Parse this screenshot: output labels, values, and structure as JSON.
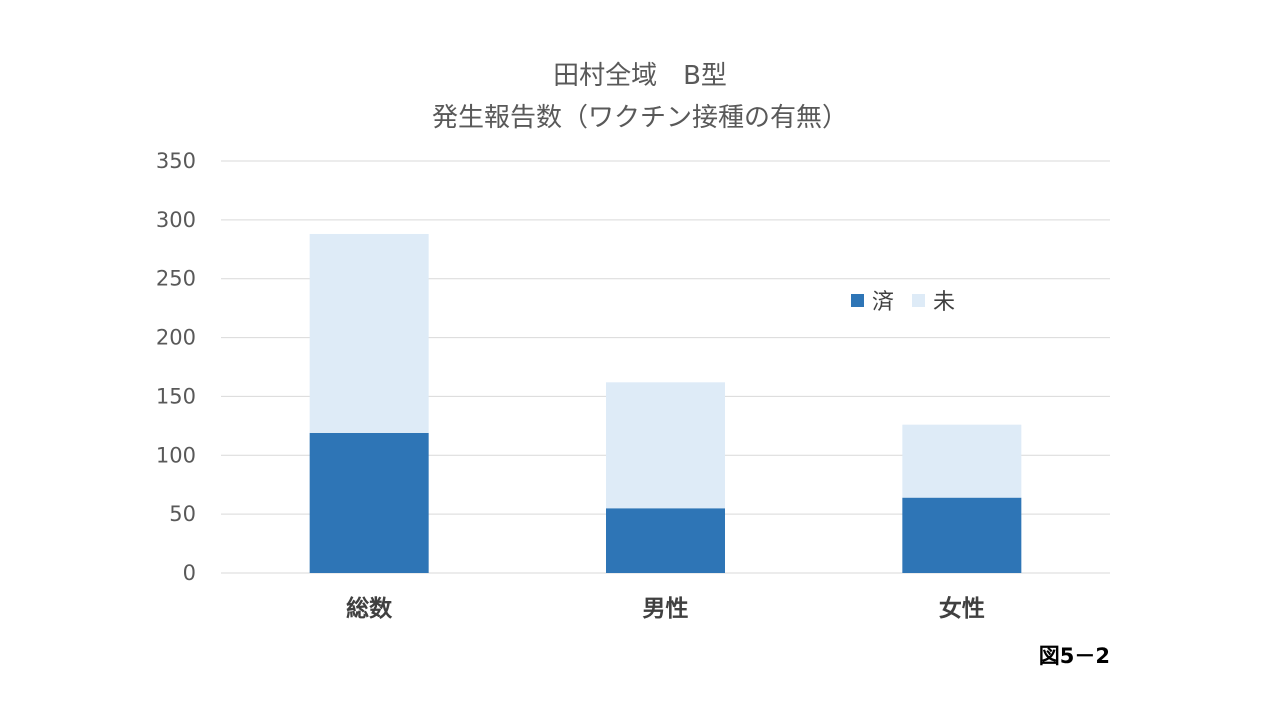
{
  "colors": {
    "done": "#2E75B6",
    "not_done": "#DEEBF7",
    "grid": "#D9D9D9",
    "text": "#595959"
  },
  "figure_label": "図5－2",
  "chart_data": {
    "type": "bar",
    "stacked": true,
    "title_lines": [
      "田村全域　B型",
      "発生報告数（ワクチン接種の有無）"
    ],
    "categories": [
      "総数",
      "男性",
      "女性"
    ],
    "series": [
      {
        "name": "済",
        "values": [
          119,
          55,
          64
        ]
      },
      {
        "name": "未",
        "values": [
          169,
          107,
          62
        ]
      }
    ],
    "ylim": [
      0,
      350
    ],
    "yticks": [
      0,
      50,
      100,
      150,
      200,
      250,
      300,
      350
    ],
    "grid": true,
    "legend_position": "top-right"
  }
}
